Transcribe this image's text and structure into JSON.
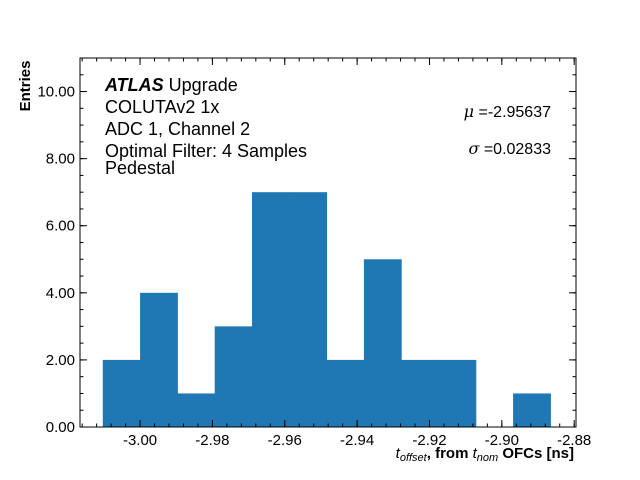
{
  "chart_data": {
    "type": "bar",
    "subtype": "histogram",
    "bin_start": -3.0103,
    "bin_width": 0.01031,
    "values": [
      2,
      4,
      1,
      3,
      7,
      7,
      2,
      5,
      2,
      2,
      0,
      1
    ],
    "xlim": [
      -3.0166,
      -2.8795
    ],
    "ylim": [
      0,
      11
    ],
    "xticks": [
      -3.0,
      -2.98,
      -2.96,
      -2.94,
      -2.92,
      -2.9,
      -2.88
    ],
    "xtick_labels": [
      "-3.00",
      "-2.98",
      "-2.96",
      "-2.94",
      "-2.92",
      "-2.90",
      "-2.88"
    ],
    "yticks": [
      0,
      2,
      4,
      6,
      8,
      10
    ],
    "ytick_labels": [
      "0.00",
      "2.00",
      "4.00",
      "6.00",
      "8.00",
      "10.00"
    ],
    "xlabel": {
      "t1": "t",
      "sub1": "offset",
      "mid": ", from ",
      "t2": "t",
      "sub2": "nom",
      "end": " OFCs [ns]"
    },
    "ylabel": "Entries",
    "grid": false,
    "bar_color": "#1f77b4",
    "annotations": {
      "atlas": "ATLAS",
      "upgrade": " Upgrade",
      "lines": [
        "COLUTAv2 1x",
        "ADC 1, Channel 2",
        "Optimal Filter: 4 Samples",
        "Pedestal"
      ],
      "mu_symbol": "μ",
      "mu_value": " =-2.95637",
      "sigma_symbol": "σ",
      "sigma_value": " =0.02833"
    }
  }
}
